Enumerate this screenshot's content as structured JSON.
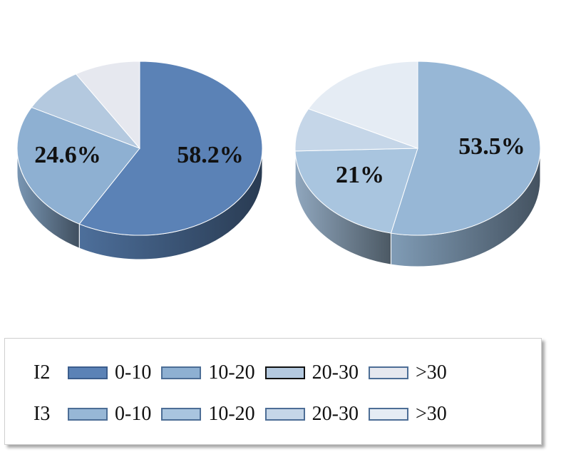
{
  "chart_data": [
    {
      "type": "pie",
      "categories": [
        "0-10",
        "10-20",
        "20-30",
        ">30"
      ],
      "values": [
        58.2,
        24.6,
        8.5,
        8.7
      ],
      "data_labels": [
        "58.2%",
        "24.6%",
        "",
        ""
      ],
      "series_name": "I2",
      "colors": [
        "#5b82b6",
        "#8eb0d2",
        "#b4c9df",
        "#e6e8ef"
      ]
    },
    {
      "type": "pie",
      "categories": [
        "0-10",
        "10-20",
        "20-30",
        ">30"
      ],
      "values": [
        53.5,
        21.0,
        8.0,
        17.5
      ],
      "data_labels": [
        "53.5%",
        "21%",
        "",
        ""
      ],
      "series_name": "I3",
      "colors": [
        "#97b7d6",
        "#a9c5df",
        "#c5d6e8",
        "#e5ecf4"
      ]
    }
  ],
  "legend": {
    "rows": [
      {
        "label": "I2",
        "items": [
          {
            "label": "0-10",
            "color": "#5b82b6",
            "border": "#3c5e8d"
          },
          {
            "label": "10-20",
            "color": "#8eb0d2",
            "border": "#4d6e96"
          },
          {
            "label": "20-30",
            "color": "#b4c9df",
            "border": "#111111"
          },
          {
            "label": ">30",
            "color": "#e6e8ef",
            "border": "#4d6e96"
          }
        ]
      },
      {
        "label": "I3",
        "items": [
          {
            "label": "0-10",
            "color": "#97b7d6",
            "border": "#4d6e96"
          },
          {
            "label": "10-20",
            "color": "#a9c5df",
            "border": "#4d6e96"
          },
          {
            "label": "20-30",
            "color": "#c5d6e8",
            "border": "#4d6e96"
          },
          {
            "label": ">30",
            "color": "#e5ecf4",
            "border": "#4d6e96"
          }
        ]
      }
    ]
  }
}
